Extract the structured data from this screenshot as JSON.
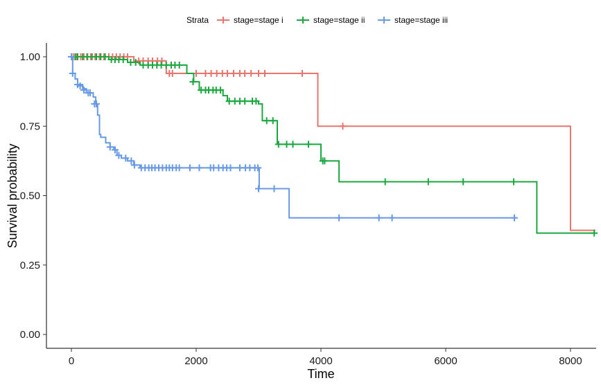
{
  "chart_data": {
    "type": "line",
    "subtype": "kaplan-meier-step",
    "title": "",
    "xlabel": "Time",
    "ylabel": "Survival probability",
    "xlim": [
      -300,
      8400
    ],
    "ylim": [
      -0.03,
      1.05
    ],
    "xticks": [
      0,
      2000,
      4000,
      6000,
      8000
    ],
    "xtick_labels": [
      "0",
      "2000",
      "4000",
      "6000",
      "8000"
    ],
    "yticks": [
      0,
      0.25,
      0.5,
      0.75,
      1
    ],
    "ytick_labels": [
      "0.00",
      "0.25",
      "0.50",
      "0.75",
      "1.00"
    ],
    "grid": false,
    "legend": {
      "title": "Strata",
      "position": "top"
    },
    "series": [
      {
        "name": "stage=stage i",
        "color": "#E8746B",
        "steps": [
          [
            0,
            1.0
          ],
          [
            1000,
            0.985
          ],
          [
            1520,
            0.94
          ],
          [
            3950,
            0.75
          ],
          [
            8000,
            0.375
          ],
          [
            8400,
            0.375
          ]
        ],
        "censored": [
          [
            0,
            1.0
          ],
          [
            30,
            1.0
          ],
          [
            80,
            1.0
          ],
          [
            150,
            1.0
          ],
          [
            200,
            1.0
          ],
          [
            260,
            1.0
          ],
          [
            310,
            1.0
          ],
          [
            380,
            1.0
          ],
          [
            450,
            1.0
          ],
          [
            520,
            1.0
          ],
          [
            600,
            1.0
          ],
          [
            660,
            1.0
          ],
          [
            720,
            1.0
          ],
          [
            780,
            1.0
          ],
          [
            840,
            1.0
          ],
          [
            900,
            1.0
          ],
          [
            1080,
            0.985
          ],
          [
            1150,
            0.985
          ],
          [
            1230,
            0.985
          ],
          [
            1300,
            0.985
          ],
          [
            1380,
            0.985
          ],
          [
            1450,
            0.985
          ],
          [
            1570,
            0.94
          ],
          [
            1620,
            0.94
          ],
          [
            2000,
            0.94
          ],
          [
            2150,
            0.94
          ],
          [
            2240,
            0.94
          ],
          [
            2330,
            0.94
          ],
          [
            2420,
            0.94
          ],
          [
            2500,
            0.94
          ],
          [
            2600,
            0.94
          ],
          [
            2700,
            0.94
          ],
          [
            2780,
            0.94
          ],
          [
            2880,
            0.94
          ],
          [
            3000,
            0.94
          ],
          [
            3100,
            0.94
          ],
          [
            3700,
            0.94
          ],
          [
            4350,
            0.75
          ]
        ]
      },
      {
        "name": "stage=stage ii",
        "color": "#1AA83E",
        "steps": [
          [
            0,
            1.0
          ],
          [
            600,
            0.99
          ],
          [
            900,
            0.98
          ],
          [
            1100,
            0.97
          ],
          [
            1850,
            0.94
          ],
          [
            1960,
            0.91
          ],
          [
            2050,
            0.88
          ],
          [
            2430,
            0.86
          ],
          [
            2500,
            0.84
          ],
          [
            3000,
            0.83
          ],
          [
            3060,
            0.77
          ],
          [
            3270,
            0.77
          ],
          [
            3300,
            0.685
          ],
          [
            3950,
            0.685
          ],
          [
            4000,
            0.625
          ],
          [
            4250,
            0.625
          ],
          [
            4290,
            0.55
          ],
          [
            7450,
            0.55
          ],
          [
            7460,
            0.365
          ],
          [
            8400,
            0.365
          ]
        ],
        "censored": [
          [
            60,
            1.0
          ],
          [
            100,
            1.0
          ],
          [
            180,
            1.0
          ],
          [
            250,
            1.0
          ],
          [
            330,
            1.0
          ],
          [
            400,
            1.0
          ],
          [
            470,
            1.0
          ],
          [
            540,
            1.0
          ],
          [
            640,
            0.99
          ],
          [
            700,
            0.99
          ],
          [
            760,
            0.99
          ],
          [
            830,
            0.99
          ],
          [
            950,
            0.98
          ],
          [
            1030,
            0.98
          ],
          [
            1150,
            0.97
          ],
          [
            1230,
            0.97
          ],
          [
            1300,
            0.97
          ],
          [
            1370,
            0.97
          ],
          [
            1440,
            0.97
          ],
          [
            1520,
            0.97
          ],
          [
            1600,
            0.97
          ],
          [
            1660,
            0.97
          ],
          [
            1730,
            0.97
          ],
          [
            1950,
            0.91
          ],
          [
            2080,
            0.88
          ],
          [
            2150,
            0.88
          ],
          [
            2200,
            0.88
          ],
          [
            2270,
            0.88
          ],
          [
            2320,
            0.88
          ],
          [
            2390,
            0.88
          ],
          [
            2530,
            0.84
          ],
          [
            2620,
            0.84
          ],
          [
            2700,
            0.84
          ],
          [
            2780,
            0.84
          ],
          [
            2900,
            0.84
          ],
          [
            2960,
            0.84
          ],
          [
            3130,
            0.77
          ],
          [
            3230,
            0.77
          ],
          [
            3320,
            0.685
          ],
          [
            3450,
            0.685
          ],
          [
            3550,
            0.685
          ],
          [
            3800,
            0.685
          ],
          [
            4030,
            0.625
          ],
          [
            4060,
            0.625
          ],
          [
            5030,
            0.55
          ],
          [
            5720,
            0.55
          ],
          [
            6280,
            0.55
          ],
          [
            7090,
            0.55
          ],
          [
            8380,
            0.365
          ]
        ]
      },
      {
        "name": "stage=stage iii",
        "color": "#6699E6",
        "steps": [
          [
            0,
            1.0
          ],
          [
            20,
            0.94
          ],
          [
            60,
            0.92
          ],
          [
            100,
            0.9
          ],
          [
            180,
            0.885
          ],
          [
            240,
            0.87
          ],
          [
            350,
            0.855
          ],
          [
            390,
            0.83
          ],
          [
            420,
            0.79
          ],
          [
            450,
            0.72
          ],
          [
            470,
            0.71
          ],
          [
            550,
            0.69
          ],
          [
            620,
            0.675
          ],
          [
            680,
            0.665
          ],
          [
            730,
            0.645
          ],
          [
            800,
            0.635
          ],
          [
            900,
            0.625
          ],
          [
            1000,
            0.61
          ],
          [
            1100,
            0.6
          ],
          [
            3000,
            0.6
          ],
          [
            3010,
            0.525
          ],
          [
            3480,
            0.525
          ],
          [
            3490,
            0.42
          ],
          [
            7130,
            0.42
          ]
        ],
        "censored": [
          [
            0,
            1.0
          ],
          [
            20,
            0.94
          ],
          [
            100,
            0.9
          ],
          [
            140,
            0.895
          ],
          [
            200,
            0.88
          ],
          [
            270,
            0.87
          ],
          [
            300,
            0.87
          ],
          [
            370,
            0.83
          ],
          [
            400,
            0.83
          ],
          [
            620,
            0.675
          ],
          [
            700,
            0.665
          ],
          [
            760,
            0.645
          ],
          [
            870,
            0.635
          ],
          [
            960,
            0.625
          ],
          [
            1010,
            0.61
          ],
          [
            1120,
            0.6
          ],
          [
            1180,
            0.6
          ],
          [
            1240,
            0.6
          ],
          [
            1290,
            0.6
          ],
          [
            1340,
            0.6
          ],
          [
            1400,
            0.6
          ],
          [
            1460,
            0.6
          ],
          [
            1520,
            0.6
          ],
          [
            1570,
            0.6
          ],
          [
            1620,
            0.6
          ],
          [
            1680,
            0.6
          ],
          [
            1730,
            0.6
          ],
          [
            1900,
            0.6
          ],
          [
            2050,
            0.6
          ],
          [
            2230,
            0.6
          ],
          [
            2280,
            0.6
          ],
          [
            2360,
            0.6
          ],
          [
            2430,
            0.6
          ],
          [
            2490,
            0.6
          ],
          [
            2550,
            0.6
          ],
          [
            2700,
            0.6
          ],
          [
            2790,
            0.6
          ],
          [
            2860,
            0.6
          ],
          [
            2940,
            0.6
          ],
          [
            2990,
            0.6
          ],
          [
            3000,
            0.525
          ],
          [
            3250,
            0.525
          ],
          [
            4290,
            0.42
          ],
          [
            4930,
            0.42
          ],
          [
            5140,
            0.42
          ],
          [
            7100,
            0.42
          ]
        ]
      }
    ]
  }
}
